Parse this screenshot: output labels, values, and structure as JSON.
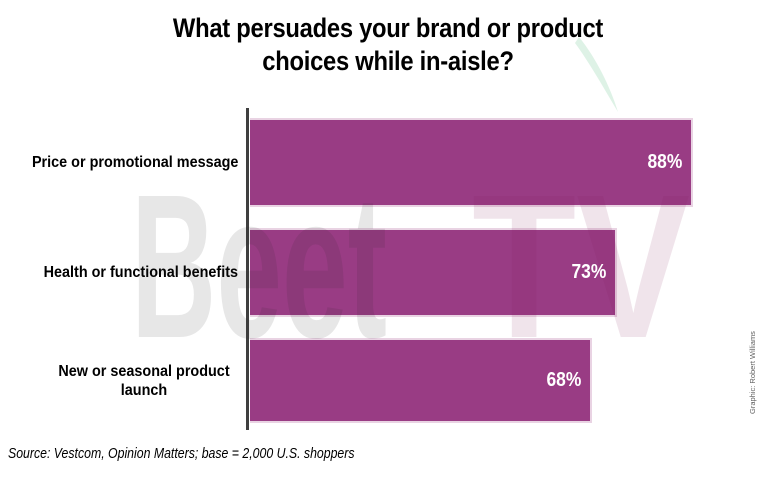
{
  "title": {
    "line1": "What persuades your brand or product",
    "line2": "choices while in-aisle?"
  },
  "chart_data": {
    "type": "bar",
    "orientation": "horizontal",
    "title": "What persuades your brand or product choices while in-aisle?",
    "categories": [
      "Price or promotional message",
      "Health or functional benefits",
      "New or seasonal product launch"
    ],
    "values": [
      88,
      73,
      68
    ],
    "value_labels": [
      "88%",
      "73%",
      "68%"
    ],
    "xlabel": "",
    "ylabel": "",
    "xlim": [
      0,
      100
    ],
    "grid": false,
    "legend": false,
    "bar_color": "#993C84",
    "bar_border_color": "#E9D3E3",
    "value_label_color": "#FFFFFF",
    "axis_line_color": "#3F3F3F",
    "category_label_color": "#000000"
  },
  "source": {
    "text": "Source: Vestcom, Opinion Matters; base = 2,000 U.S. shoppers"
  },
  "credit": {
    "text": "Graphic: Robert Williams"
  },
  "watermark": {
    "word1": "Beet",
    "word2": "TV",
    "word1_color": "rgba(40,40,40,0.11)",
    "word2_color": "rgba(130,30,90,0.12)",
    "leaf_color": "#DEF2E6"
  }
}
